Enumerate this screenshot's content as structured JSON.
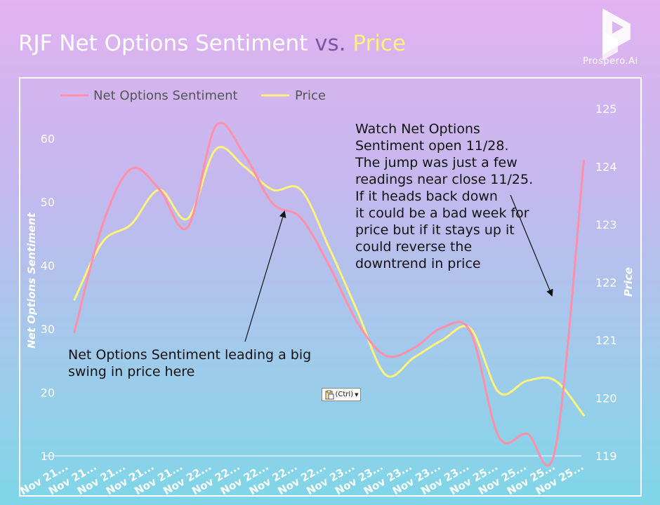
{
  "title": {
    "part1": "RJF Net Options Sentiment",
    "part2": "vs.",
    "part3": "Price"
  },
  "logo": {
    "text": "Prospero.Ai",
    "icon": "prospero-logo-icon"
  },
  "paste_button": {
    "label": "(Ctrl)",
    "icon": "clipboard-icon"
  },
  "annotations": {
    "left": "Net Options Sentiment leading a big\nswing in price here",
    "right": "Watch Net Options\nSentiment open 11/28.\nThe jump was just a few\nreadings near close 11/25.\nIf it heads back down\nit could be a bad week for\nprice but if it stays up it\ncould reverse the\ndowntrend in price"
  },
  "colors": {
    "sentiment": "#ff8faa",
    "price": "#fff27a",
    "axis_text": "#ffffff",
    "purple": "#7d55a6"
  },
  "chart_data": {
    "type": "line",
    "legend_position": "top-left",
    "grid": false,
    "x_tick_labels": [
      "Nov 21...",
      "Nov 21...",
      "Nov 21...",
      "Nov 21...",
      "Nov 21...",
      "Nov 22...",
      "Nov 22...",
      "Nov 22...",
      "Nov 22...",
      "Nov 22...",
      "Nov 23...",
      "Nov 23...",
      "Nov 23...",
      "Nov 23...",
      "Nov 23...",
      "Nov 25...",
      "Nov 25...",
      "Nov 25...",
      "Nov 25..."
    ],
    "y_left": {
      "label": "Net Options Sentiment",
      "range": [
        10,
        65
      ],
      "ticks": [
        10,
        20,
        30,
        40,
        50,
        60
      ]
    },
    "y_right": {
      "label": "Price",
      "range": [
        119,
        125
      ],
      "ticks": [
        119,
        120,
        121,
        122,
        123,
        124,
        125
      ]
    },
    "series": [
      {
        "name": "Net Options Sentiment",
        "axis": "left",
        "x": [
          0,
          1.0,
          2.0,
          3.0,
          4.0,
          5.0,
          6.0,
          7.0,
          8.0,
          9.0,
          10.0,
          11.0,
          12.0,
          13.0,
          14.0,
          15.0,
          16.0,
          17.0,
          18.0
        ],
        "values": [
          29.5,
          46.5,
          55.2,
          52.0,
          46.0,
          62.0,
          57.5,
          49.8,
          47.5,
          40.0,
          31.0,
          25.8,
          27.0,
          30.2,
          29.5,
          13.0,
          13.5,
          11.2,
          56.5
        ]
      },
      {
        "name": "Price",
        "axis": "right",
        "x": [
          0,
          1.0,
          2.0,
          3.0,
          4.0,
          5.0,
          6.0,
          7.0,
          8.0,
          9.0,
          10.0,
          11.0,
          12.0,
          13.0,
          14.0,
          15.0,
          16.0,
          17.0,
          18.0
        ],
        "values": [
          121.7,
          122.7,
          123.0,
          123.6,
          123.1,
          124.3,
          124.0,
          123.6,
          123.6,
          122.6,
          121.5,
          120.4,
          120.7,
          121.0,
          121.2,
          120.1,
          120.3,
          120.3,
          119.7
        ]
      }
    ]
  }
}
